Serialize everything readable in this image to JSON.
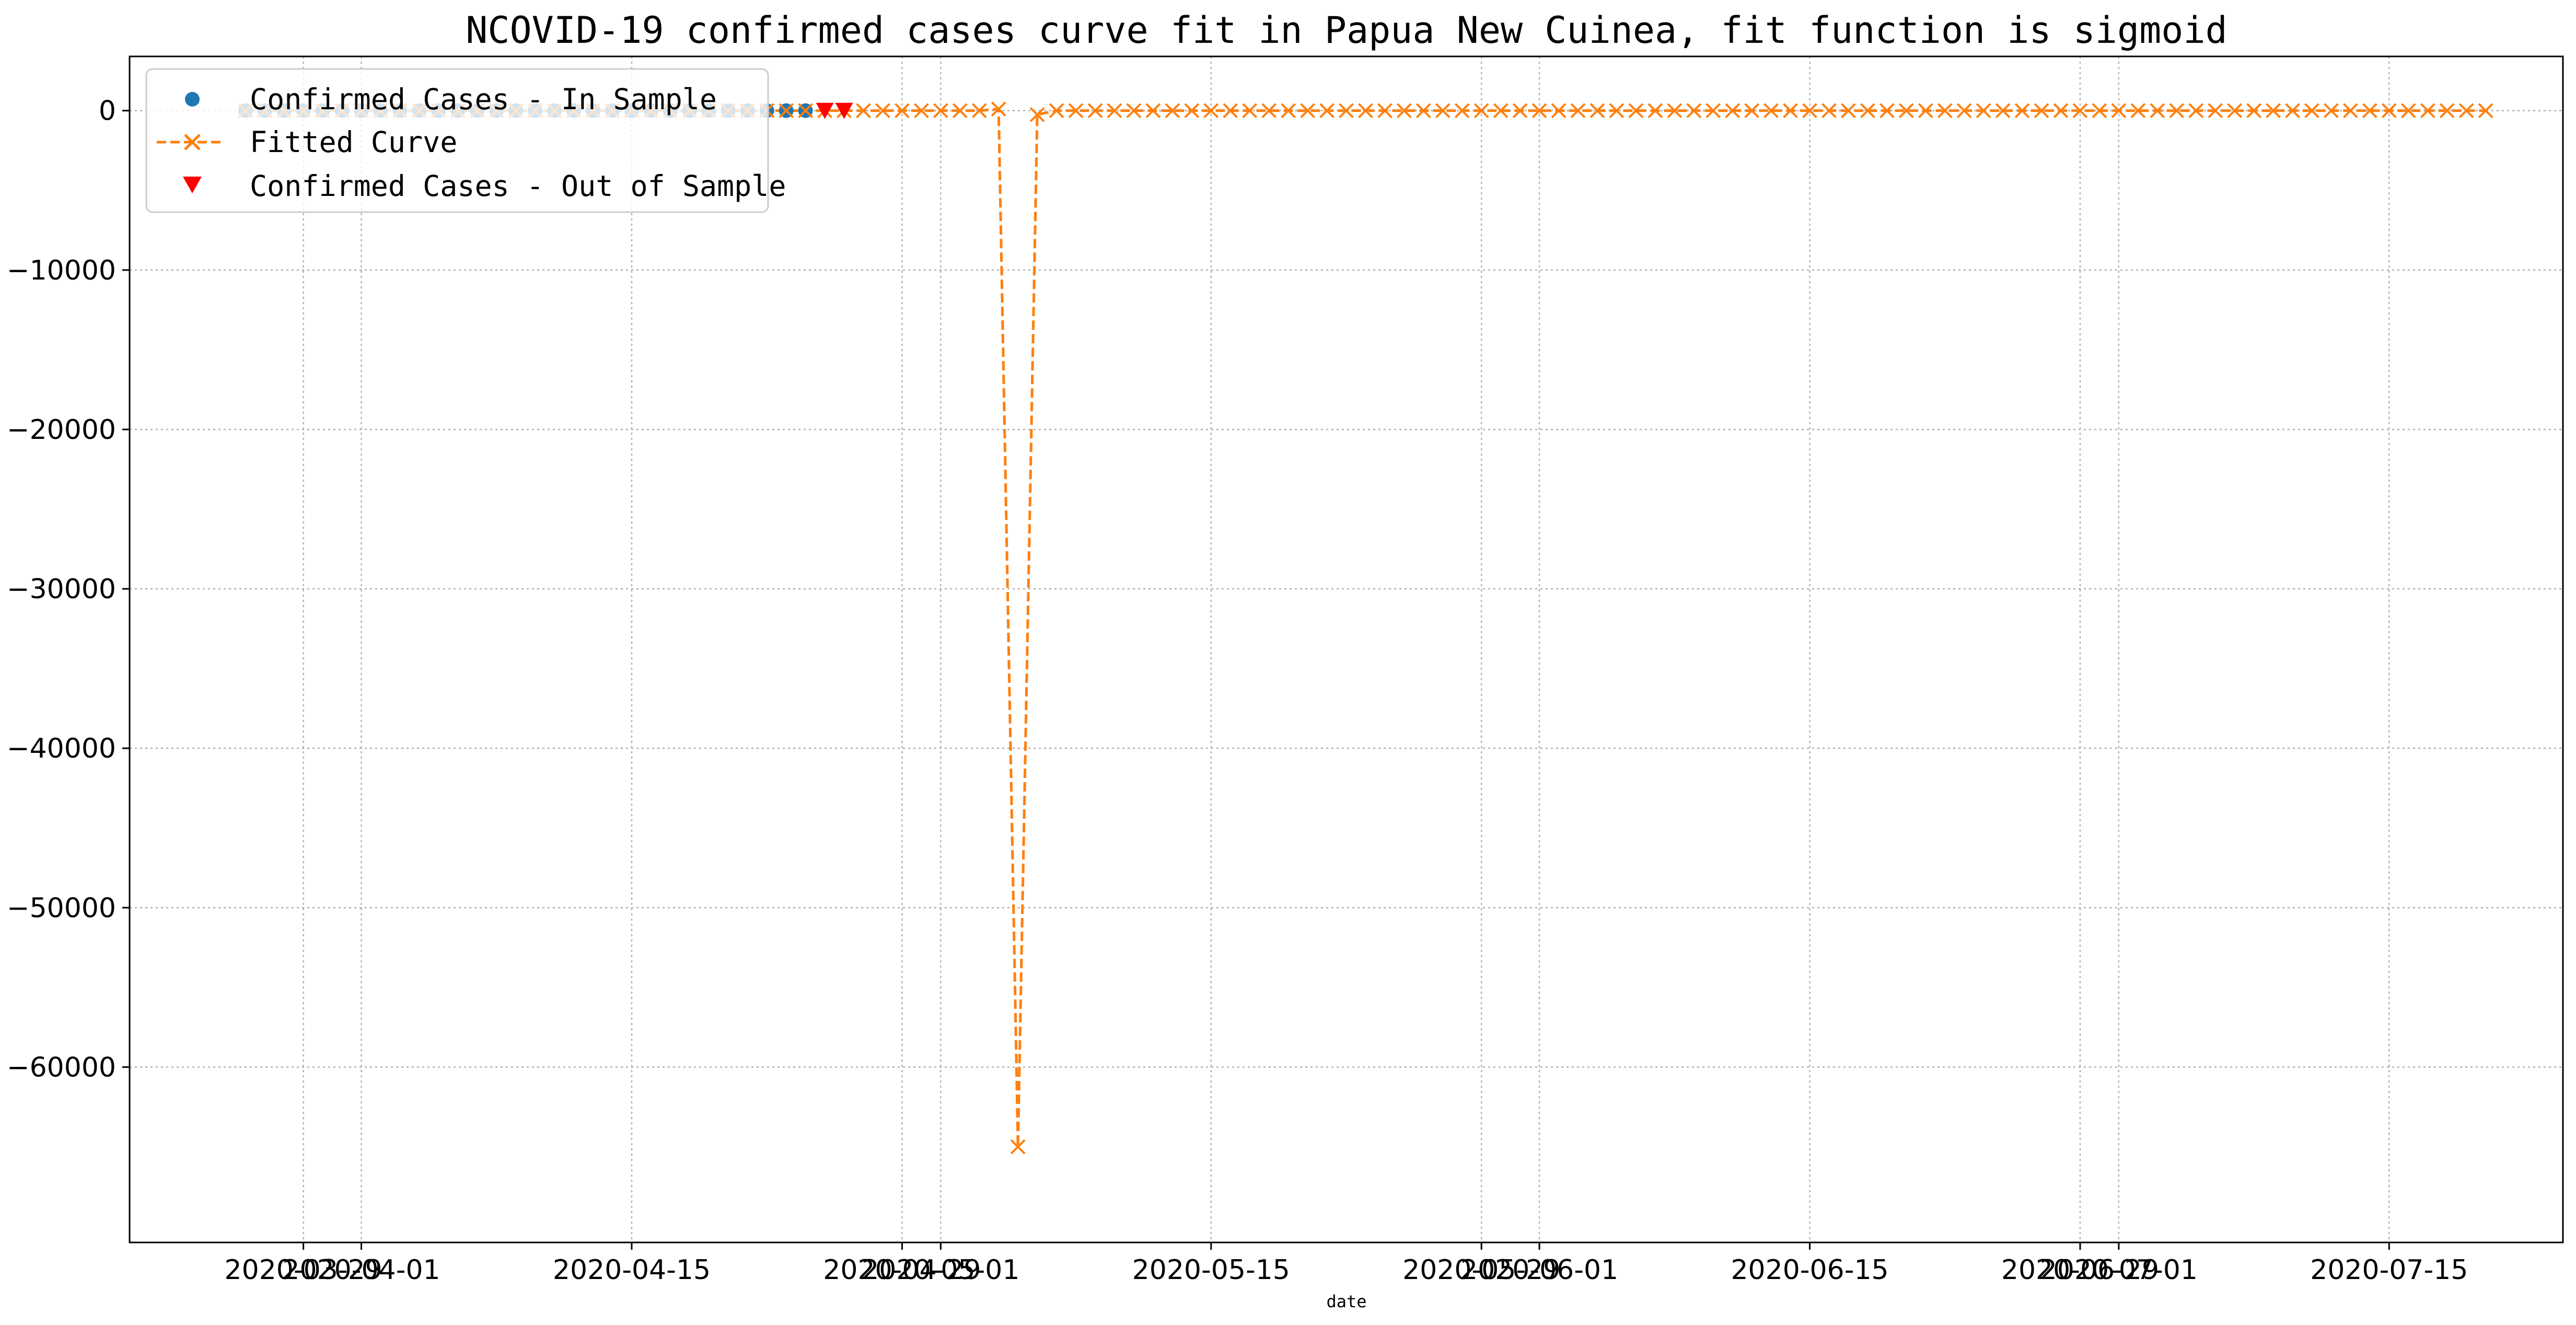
{
  "chart_data": {
    "type": "line",
    "title": "NCOVID-19 confirmed cases curve fit in Papua New Cuinea, fit function is sigmoid",
    "xlabel": "date",
    "ylabel": "",
    "ylim": [
      -71000,
      3400
    ],
    "xlim": [
      "2020-03-20",
      "2020-07-24"
    ],
    "grid": true,
    "legend_position": "upper-left",
    "y_ticks": [
      0,
      -10000,
      -20000,
      -30000,
      -40000,
      -50000,
      -60000
    ],
    "x_ticks": [
      {
        "date": "2020-03-29",
        "label": "2020-03-29"
      },
      {
        "date": "2020-04-01",
        "label": "2020-04-01"
      },
      {
        "date": "2020-04-15",
        "label": "2020-04-15"
      },
      {
        "date": "2020-04-29",
        "label": "2020-04-29"
      },
      {
        "date": "2020-05-01",
        "label": "2020-05-01"
      },
      {
        "date": "2020-05-15",
        "label": "2020-05-15"
      },
      {
        "date": "2020-05-29",
        "label": "2020-05-29"
      },
      {
        "date": "2020-06-01",
        "label": "2020-06-01"
      },
      {
        "date": "2020-06-15",
        "label": "2020-06-15"
      },
      {
        "date": "2020-06-29",
        "label": "2020-06-29"
      },
      {
        "date": "2020-07-01",
        "label": "2020-07-01"
      },
      {
        "date": "2020-07-15",
        "label": "2020-07-15"
      }
    ],
    "series": [
      {
        "name": "Confirmed Cases - In Sample",
        "marker": "circle",
        "color": "#1f77b4",
        "x_start": "2020-03-26",
        "x_end": "2020-04-24",
        "values_constant": 0
      },
      {
        "name": "Fitted Curve",
        "marker": "x",
        "linestyle": "dashed",
        "color": "#ff7f0e",
        "x_start": "2020-03-26",
        "x_end": "2020-07-20",
        "baseline_value": 0,
        "points": [
          {
            "x": "2020-05-04",
            "y": 100
          },
          {
            "x": "2020-05-05",
            "y": -65000
          },
          {
            "x": "2020-05-06",
            "y": -250
          }
        ]
      },
      {
        "name": "Confirmed Cases - Out of Sample",
        "marker": "triangle-down",
        "color": "#ff0000",
        "x": [
          "2020-04-25",
          "2020-04-26"
        ],
        "values": [
          0,
          0
        ]
      }
    ]
  }
}
